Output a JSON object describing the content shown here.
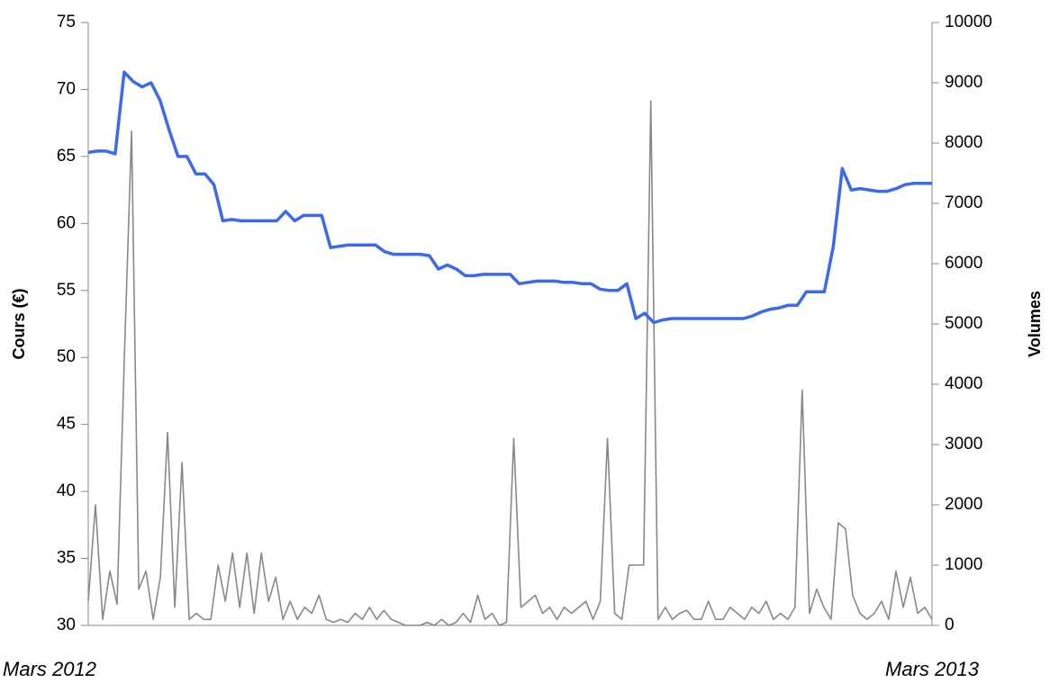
{
  "chart_data": {
    "type": "line",
    "y_label": "Cours (€)",
    "y2_label": "Volumes",
    "x_labels": [
      "Mars 2012",
      "Mars  2013"
    ],
    "ylim": [
      30,
      75
    ],
    "yticks": [
      30,
      35,
      40,
      45,
      50,
      55,
      60,
      65,
      70,
      75
    ],
    "y2lim": [
      0,
      10000
    ],
    "y2ticks": [
      0,
      1000,
      2000,
      3000,
      4000,
      5000,
      6000,
      7000,
      8000,
      9000,
      10000
    ],
    "series": [
      {
        "name": "Cours",
        "color": "#3d6ae8",
        "axis": "y",
        "values": [
          65.3,
          65.4,
          65.4,
          65.2,
          71.3,
          70.6,
          70.2,
          70.5,
          69.2,
          67.0,
          65.0,
          65.0,
          63.7,
          63.7,
          62.9,
          60.2,
          60.3,
          60.2,
          60.2,
          60.2,
          60.2,
          60.2,
          60.9,
          60.2,
          60.6,
          60.6,
          60.6,
          58.2,
          58.3,
          58.4,
          58.4,
          58.4,
          58.4,
          57.9,
          57.7,
          57.7,
          57.7,
          57.7,
          57.6,
          56.6,
          56.9,
          56.6,
          56.1,
          56.1,
          56.2,
          56.2,
          56.2,
          56.2,
          55.5,
          55.6,
          55.7,
          55.7,
          55.7,
          55.6,
          55.6,
          55.5,
          55.5,
          55.1,
          55.0,
          55.0,
          55.5,
          52.9,
          53.3,
          52.6,
          52.8,
          52.9,
          52.9,
          52.9,
          52.9,
          52.9,
          52.9,
          52.9,
          52.9,
          52.9,
          53.1,
          53.4,
          53.6,
          53.7,
          53.9,
          53.9,
          54.9,
          54.9,
          54.9,
          58.3,
          64.1,
          62.5,
          62.6,
          62.5,
          62.4,
          62.4,
          62.6,
          62.9,
          63.0,
          63.0,
          63.0
        ]
      },
      {
        "name": "Volumes",
        "color": "#888888",
        "axis": "y2",
        "values": [
          400,
          2000,
          100,
          900,
          350,
          4400,
          8200,
          600,
          900,
          100,
          800,
          3200,
          300,
          2700,
          100,
          200,
          100,
          100,
          1000,
          400,
          1200,
          300,
          1200,
          200,
          1200,
          400,
          800,
          100,
          400,
          100,
          300,
          200,
          500,
          100,
          50,
          100,
          50,
          200,
          100,
          300,
          100,
          250,
          100,
          50,
          0,
          0,
          0,
          50,
          0,
          100,
          0,
          50,
          200,
          50,
          500,
          100,
          200,
          0,
          50,
          3100,
          300,
          400,
          500,
          200,
          300,
          100,
          300,
          200,
          300,
          400,
          100,
          400,
          3100,
          200,
          100,
          1000,
          1000,
          1000,
          8700,
          100,
          300,
          100,
          200,
          250,
          100,
          100,
          400,
          100,
          100,
          300,
          200,
          100,
          300,
          200,
          400,
          100,
          200,
          100,
          300,
          3900,
          200,
          600,
          300,
          100,
          1700,
          1600,
          500,
          200,
          100,
          200,
          400,
          100,
          900,
          300,
          800,
          200,
          300,
          100
        ]
      }
    ]
  }
}
